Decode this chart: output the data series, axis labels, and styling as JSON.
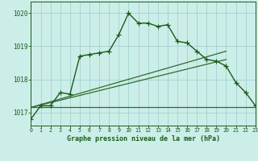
{
  "title": "Graphe pression niveau de la mer (hPa)",
  "bg_color": "#cceee8",
  "grid_color": "#99cccc",
  "text_color": "#1a5c1a",
  "line_color": "#1a5c1a",
  "ref_color": "#2d6b2d",
  "xlim": [
    0,
    23
  ],
  "ylim": [
    1016.6,
    1020.35
  ],
  "yticks": [
    1017,
    1018,
    1019,
    1020
  ],
  "xticks": [
    0,
    1,
    2,
    3,
    4,
    5,
    6,
    7,
    8,
    9,
    10,
    11,
    12,
    13,
    14,
    15,
    16,
    17,
    18,
    19,
    20,
    21,
    22,
    23
  ],
  "main_x": [
    0,
    1,
    2,
    3,
    4,
    5,
    6,
    7,
    8,
    9,
    10,
    11,
    12,
    13,
    14,
    15,
    16,
    17,
    18,
    19,
    20,
    21,
    22,
    23
  ],
  "main_y": [
    1016.8,
    1017.2,
    1017.2,
    1017.6,
    1017.55,
    1018.7,
    1018.75,
    1018.8,
    1018.85,
    1019.35,
    1020.0,
    1019.7,
    1019.7,
    1019.6,
    1019.65,
    1019.15,
    1019.1,
    1018.85,
    1018.6,
    1018.55,
    1018.4,
    1017.9,
    1017.6,
    1017.2
  ],
  "ref_lines": [
    {
      "x": [
        0,
        20
      ],
      "y": [
        1017.15,
        1018.85
      ]
    },
    {
      "x": [
        0,
        20
      ],
      "y": [
        1017.15,
        1018.6
      ]
    },
    {
      "x": [
        0,
        23
      ],
      "y": [
        1017.15,
        1017.15
      ]
    }
  ]
}
